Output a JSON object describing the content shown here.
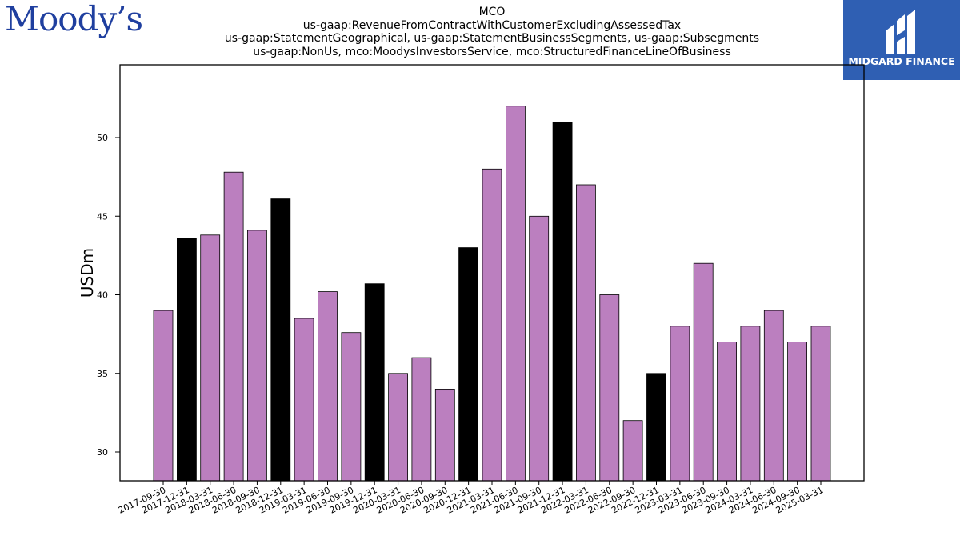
{
  "brand_left": "Moody’s",
  "brand_right": "MIDGARD FINANCE",
  "colors": {
    "bar_default": "#bb7fbf",
    "bar_highlight": "#000000",
    "brand_left": "#1f3f9f",
    "brand_right_bg": "#2f5fb3"
  },
  "chart_data": {
    "type": "bar",
    "title_lines": [
      "MCO",
      "us-gaap:RevenueFromContractWithCustomerExcludingAssessedTax",
      "us-gaap:StatementGeographical, us-gaap:StatementBusinessSegments, us-gaap:Subsegments",
      "us-gaap:NonUs, mco:MoodysInvestorsService, mco:StructuredFinanceLineOfBusiness"
    ],
    "xlabel": "",
    "ylabel": "USDm",
    "ylim": [
      28.2,
      54.5
    ],
    "yticks": [
      30,
      35,
      40,
      45,
      50
    ],
    "categories": [
      "2017-09-30",
      "2017-12-31",
      "2018-03-31",
      "2018-06-30",
      "2018-09-30",
      "2018-12-31",
      "2019-03-31",
      "2019-06-30",
      "2019-09-30",
      "2019-12-31",
      "2020-03-31",
      "2020-06-30",
      "2020-09-30",
      "2020-12-31",
      "2021-03-31",
      "2021-06-30",
      "2021-09-30",
      "2021-12-31",
      "2022-03-31",
      "2022-06-30",
      "2022-09-30",
      "2022-12-31",
      "2023-03-31",
      "2023-06-30",
      "2023-09-30",
      "2024-03-31",
      "2024-06-30",
      "2024-09-30",
      "2025-03-31"
    ],
    "values": [
      39,
      43.6,
      43.8,
      47.8,
      44.1,
      46.1,
      38.5,
      40.2,
      37.6,
      40.7,
      35,
      36,
      34,
      43,
      48,
      52,
      45,
      51,
      47,
      40,
      32,
      35,
      38,
      42,
      37,
      38,
      39,
      37,
      38
    ],
    "highlight": [
      false,
      true,
      false,
      false,
      false,
      true,
      false,
      false,
      false,
      true,
      false,
      false,
      false,
      true,
      false,
      false,
      false,
      true,
      false,
      false,
      false,
      true,
      false,
      false,
      false,
      false,
      false,
      false,
      false
    ],
    "grid": false,
    "legend": "none"
  }
}
